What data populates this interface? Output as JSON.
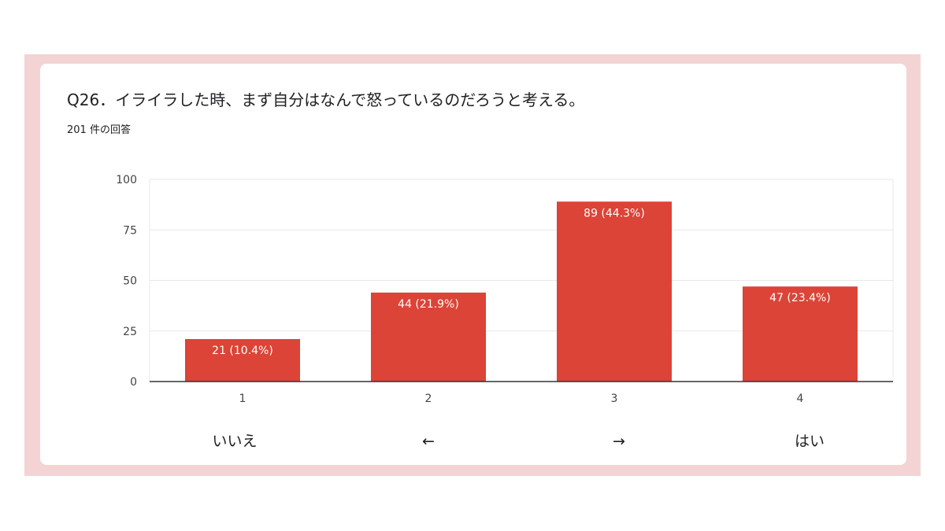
{
  "question": {
    "title": "Q26．イライラした時、まず自分はなんで怒っているのだろうと考える。",
    "response_count": "201 件の回答"
  },
  "colors": {
    "bar": "#db4437",
    "frame": "#f3d3d3",
    "grid": "#e8e8e8",
    "axis": "#333333",
    "bar_label": "#ffffff"
  },
  "chart_data": {
    "type": "bar",
    "categories": [
      "1",
      "2",
      "3",
      "4"
    ],
    "values": [
      21,
      44,
      89,
      47
    ],
    "data_labels": [
      "21 (10.4%)",
      "44 (21.9%)",
      "89 (44.3%)",
      "47 (23.4%)"
    ],
    "title": "",
    "xlabel": "",
    "ylabel": "",
    "ylim": [
      0,
      100
    ],
    "yticks": [
      0,
      25,
      50,
      75,
      100
    ],
    "grid": true
  },
  "scale_labels": [
    {
      "category": "1",
      "text": "いいえ"
    },
    {
      "category": "2",
      "text": "←"
    },
    {
      "category": "3",
      "text": "→"
    },
    {
      "category": "4",
      "text": "はい"
    }
  ]
}
